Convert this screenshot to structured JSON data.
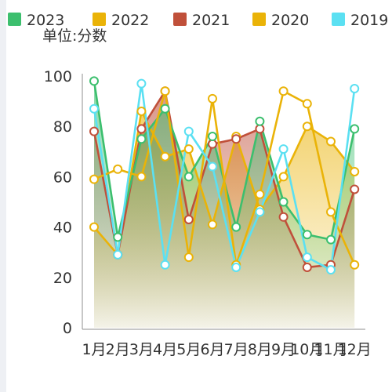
{
  "chart_data": {
    "type": "line",
    "unit_label": "单位:分数",
    "categories": [
      "1月",
      "2月",
      "3月",
      "4月",
      "5月",
      "6月",
      "7月",
      "8月",
      "9月",
      "10月",
      "11月",
      "12月"
    ],
    "ylim": [
      0,
      100
    ],
    "yticks": [
      0,
      20,
      40,
      60,
      80,
      100
    ],
    "legend_position": "top",
    "series": [
      {
        "name": "2023",
        "color": "#3cbf6e",
        "values": [
          98,
          36,
          75,
          87,
          60,
          76,
          40,
          82,
          50,
          37,
          35,
          79
        ],
        "area": true
      },
      {
        "name": "2022",
        "color": "#eab308",
        "values": [
          59,
          63,
          60,
          94,
          28,
          91,
          25,
          53,
          94,
          89,
          46,
          25
        ],
        "area": false
      },
      {
        "name": "2021",
        "color": "#c0503a",
        "values": [
          78,
          29,
          79,
          94,
          43,
          73,
          75,
          79,
          44,
          24,
          25,
          55
        ],
        "area": true
      },
      {
        "name": "2020",
        "color": "#eab308",
        "values": [
          40,
          29,
          86,
          68,
          71,
          41,
          76,
          47,
          60,
          80,
          74,
          62
        ],
        "area": true
      },
      {
        "name": "2019",
        "color": "#5be0f2",
        "values": [
          87,
          29,
          97,
          25,
          78,
          64,
          24,
          46,
          71,
          28,
          23,
          95
        ],
        "area": false
      }
    ]
  }
}
